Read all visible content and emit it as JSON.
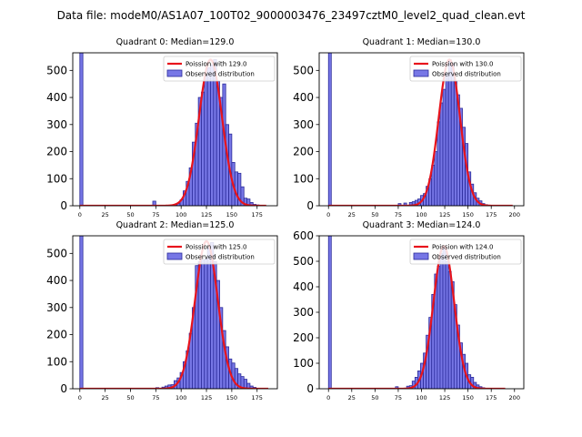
{
  "figure": {
    "title": "Data file: modeM0/AS1A07_100T02_9000003476_23497cztM0_level2_quad_clean.evt"
  },
  "colors": {
    "bar_fill": "#7777e6",
    "bar_edge": "#2a2a9a",
    "fit_line": "#e8141c",
    "axes": "#000000"
  },
  "chart_data": [
    {
      "type": "bar",
      "title": "Quadrant 0: Median=129.0",
      "median": 129,
      "xlim": [
        -7,
        195
      ],
      "ylim": [
        0,
        565
      ],
      "xticks": [
        0,
        25,
        50,
        75,
        100,
        125,
        150,
        175
      ],
      "yticks": [
        0,
        100,
        200,
        300,
        400,
        500
      ],
      "bin_width": 3,
      "legend": [
        "Poission with 129.0",
        "Observed distribution"
      ],
      "bars": [
        [
          0,
          565
        ],
        [
          72,
          17
        ],
        [
          93,
          2
        ],
        [
          96,
          8
        ],
        [
          99,
          22
        ],
        [
          102,
          55
        ],
        [
          105,
          90
        ],
        [
          108,
          140
        ],
        [
          111,
          235
        ],
        [
          114,
          305
        ],
        [
          117,
          400
        ],
        [
          120,
          420
        ],
        [
          123,
          480
        ],
        [
          126,
          510
        ],
        [
          129,
          520
        ],
        [
          132,
          540
        ],
        [
          135,
          460
        ],
        [
          138,
          400
        ],
        [
          141,
          450
        ],
        [
          144,
          300
        ],
        [
          147,
          265
        ],
        [
          150,
          160
        ],
        [
          153,
          125
        ],
        [
          156,
          120
        ],
        [
          159,
          70
        ],
        [
          162,
          28
        ],
        [
          165,
          25
        ],
        [
          168,
          12
        ],
        [
          171,
          5
        ],
        [
          174,
          3
        ],
        [
          177,
          1
        ]
      ],
      "curve_peak": 540,
      "curve_sigma": 11.36,
      "curve_x_range": [
        0,
        184
      ]
    },
    {
      "type": "bar",
      "title": "Quadrant 1: Median=130.0",
      "median": 130,
      "xlim": [
        -10,
        210
      ],
      "ylim": [
        0,
        565
      ],
      "xticks": [
        0,
        25,
        50,
        75,
        100,
        125,
        150,
        175,
        200
      ],
      "yticks": [
        0,
        100,
        200,
        300,
        400,
        500
      ],
      "bin_width": 3,
      "legend": [
        "Poission with 130.0",
        "Observed distribution"
      ],
      "bars": [
        [
          0,
          565
        ],
        [
          75,
          8
        ],
        [
          81,
          10
        ],
        [
          87,
          12
        ],
        [
          90,
          15
        ],
        [
          93,
          20
        ],
        [
          96,
          25
        ],
        [
          99,
          38
        ],
        [
          102,
          45
        ],
        [
          105,
          72
        ],
        [
          108,
          100
        ],
        [
          111,
          150
        ],
        [
          114,
          200
        ],
        [
          117,
          310
        ],
        [
          120,
          380
        ],
        [
          123,
          430
        ],
        [
          126,
          490
        ],
        [
          129,
          540
        ],
        [
          132,
          525
        ],
        [
          135,
          460
        ],
        [
          138,
          410
        ],
        [
          141,
          360
        ],
        [
          144,
          290
        ],
        [
          147,
          230
        ],
        [
          150,
          125
        ],
        [
          153,
          80
        ],
        [
          156,
          48
        ],
        [
          159,
          28
        ],
        [
          162,
          18
        ],
        [
          165,
          8
        ],
        [
          168,
          4
        ],
        [
          171,
          2
        ],
        [
          174,
          1
        ]
      ],
      "curve_peak": 540,
      "curve_sigma": 11.4,
      "curve_x_range": [
        0,
        198
      ]
    },
    {
      "type": "bar",
      "title": "Quadrant 2: Median=125.0",
      "median": 125,
      "xlim": [
        -7,
        195
      ],
      "ylim": [
        0,
        565
      ],
      "xticks": [
        0,
        25,
        50,
        75,
        100,
        125,
        150,
        175
      ],
      "yticks": [
        0,
        100,
        200,
        300,
        400,
        500
      ],
      "bin_width": 3,
      "legend": [
        "Poission with 125.0",
        "Observed distribution"
      ],
      "bars": [
        [
          0,
          565
        ],
        [
          75,
          4
        ],
        [
          81,
          6
        ],
        [
          84,
          10
        ],
        [
          87,
          14
        ],
        [
          90,
          15
        ],
        [
          93,
          30
        ],
        [
          96,
          40
        ],
        [
          99,
          60
        ],
        [
          102,
          100
        ],
        [
          105,
          140
        ],
        [
          108,
          205
        ],
        [
          111,
          300
        ],
        [
          114,
          455
        ],
        [
          117,
          470
        ],
        [
          120,
          475
        ],
        [
          123,
          480
        ],
        [
          126,
          520
        ],
        [
          129,
          540
        ],
        [
          132,
          470
        ],
        [
          135,
          400
        ],
        [
          138,
          300
        ],
        [
          141,
          215
        ],
        [
          144,
          155
        ],
        [
          147,
          110
        ],
        [
          150,
          95
        ],
        [
          153,
          75
        ],
        [
          156,
          55
        ],
        [
          159,
          45
        ],
        [
          162,
          35
        ],
        [
          165,
          20
        ],
        [
          168,
          10
        ],
        [
          171,
          5
        ],
        [
          174,
          2
        ],
        [
          177,
          1
        ]
      ],
      "curve_peak": 545,
      "curve_sigma": 11.18,
      "curve_x_range": [
        0,
        186
      ]
    },
    {
      "type": "bar",
      "title": "Quadrant 3: Median=124.0",
      "median": 124,
      "xlim": [
        -10,
        210
      ],
      "ylim": [
        0,
        600
      ],
      "xticks": [
        0,
        25,
        50,
        75,
        100,
        125,
        150,
        175,
        200
      ],
      "yticks": [
        0,
        100,
        200,
        300,
        400,
        500,
        600
      ],
      "bin_width": 3,
      "legend": [
        "Poission with 124.0",
        "Observed distribution"
      ],
      "bars": [
        [
          0,
          600
        ],
        [
          72,
          8
        ],
        [
          84,
          10
        ],
        [
          87,
          12
        ],
        [
          90,
          30
        ],
        [
          93,
          45
        ],
        [
          96,
          70
        ],
        [
          99,
          100
        ],
        [
          102,
          140
        ],
        [
          105,
          210
        ],
        [
          108,
          280
        ],
        [
          111,
          370
        ],
        [
          114,
          450
        ],
        [
          117,
          480
        ],
        [
          120,
          530
        ],
        [
          123,
          560
        ],
        [
          126,
          500
        ],
        [
          129,
          460
        ],
        [
          132,
          420
        ],
        [
          135,
          330
        ],
        [
          138,
          250
        ],
        [
          141,
          180
        ],
        [
          144,
          135
        ],
        [
          147,
          100
        ],
        [
          150,
          55
        ],
        [
          153,
          45
        ],
        [
          156,
          25
        ],
        [
          159,
          15
        ],
        [
          162,
          8
        ],
        [
          165,
          4
        ],
        [
          168,
          2
        ],
        [
          171,
          1
        ]
      ],
      "curve_peak": 560,
      "curve_sigma": 11.14,
      "curve_x_range": [
        0,
        190
      ]
    }
  ]
}
